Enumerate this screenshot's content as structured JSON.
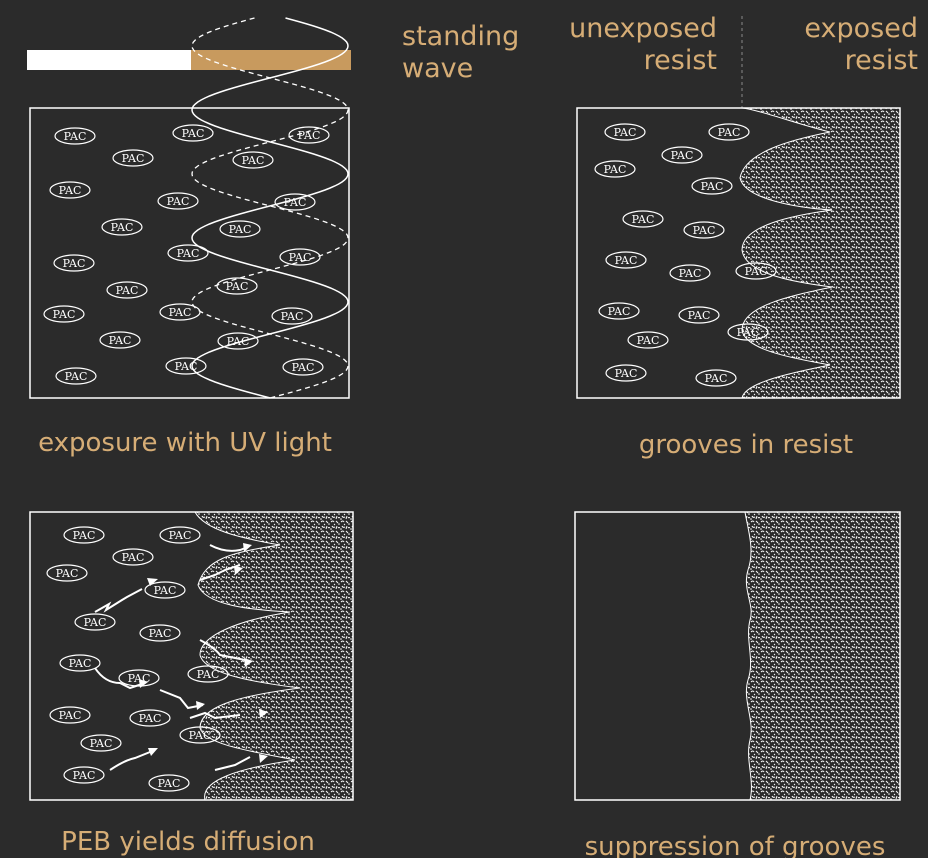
{
  "colors": {
    "background": "#2b2b2b",
    "caption": "#d6ad76",
    "line": "#ffffff",
    "wave_bar_exposed": "#c89a5e"
  },
  "labels": {
    "standing_wave": [
      "standing",
      "wave"
    ],
    "unexposed_resist": [
      "unexposed",
      "resist"
    ],
    "exposed_resist": [
      "exposed",
      "resist"
    ]
  },
  "pac_label": "PAC",
  "panels": {
    "exposure": {
      "caption": "exposure with UV light"
    },
    "grooves": {
      "caption": "grooves in resist"
    },
    "peb": {
      "caption": "PEB yields diffusion"
    },
    "suppression": {
      "caption": "suppression of grooves"
    }
  }
}
